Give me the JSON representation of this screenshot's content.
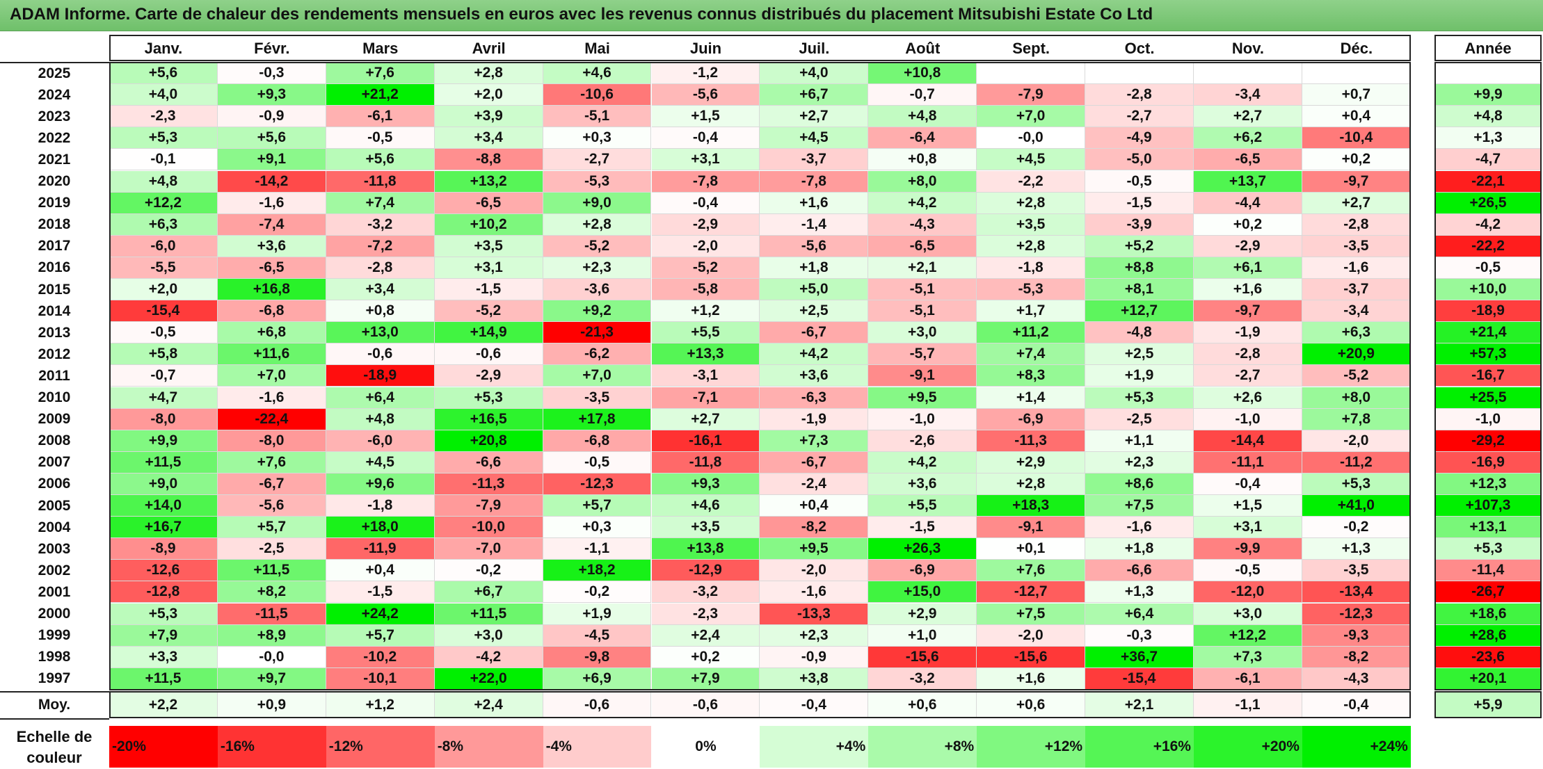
{
  "title": "ADAM Informe. Carte de chaleur des rendements mensuels en euros avec les revenus connus distribués du placement Mitsubishi Estate Co Ltd",
  "chart_data": {
    "type": "heatmap",
    "title": "ADAM Informe. Carte de chaleur des rendements mensuels en euros avec les revenus connus distribués du placement Mitsubishi Estate Co Ltd",
    "columns": [
      "Janv.",
      "Févr.",
      "Mars",
      "Avril",
      "Mai",
      "Juin",
      "Juil.",
      "Août",
      "Sept.",
      "Oct.",
      "Nov.",
      "Déc."
    ],
    "annual_header": "Année",
    "rows": [
      {
        "year": "2025",
        "values": [
          "+5,6",
          "-0,3",
          "+7,6",
          "+2,8",
          "+4,6",
          "-1,2",
          "+4,0",
          "+10,8",
          "",
          "",
          "",
          ""
        ],
        "annual": ""
      },
      {
        "year": "2024",
        "values": [
          "+4,0",
          "+9,3",
          "+21,2",
          "+2,0",
          "-10,6",
          "-5,6",
          "+6,7",
          "-0,7",
          "-7,9",
          "-2,8",
          "-3,4",
          "+0,7"
        ],
        "annual": "+9,9"
      },
      {
        "year": "2023",
        "values": [
          "-2,3",
          "-0,9",
          "-6,1",
          "+3,9",
          "-5,1",
          "+1,5",
          "+2,7",
          "+4,8",
          "+7,0",
          "-2,7",
          "+2,7",
          "+0,4"
        ],
        "annual": "+4,8"
      },
      {
        "year": "2022",
        "values": [
          "+5,3",
          "+5,6",
          "-0,5",
          "+3,4",
          "+0,3",
          "-0,4",
          "+4,5",
          "-6,4",
          "-0,0",
          "-4,9",
          "+6,2",
          "-10,4"
        ],
        "annual": "+1,3"
      },
      {
        "year": "2021",
        "values": [
          "-0,1",
          "+9,1",
          "+5,6",
          "-8,8",
          "-2,7",
          "+3,1",
          "-3,7",
          "+0,8",
          "+4,5",
          "-5,0",
          "-6,5",
          "+0,2"
        ],
        "annual": "-4,7"
      },
      {
        "year": "2020",
        "values": [
          "+4,8",
          "-14,2",
          "-11,8",
          "+13,2",
          "-5,3",
          "-7,8",
          "-7,8",
          "+8,0",
          "-2,2",
          "-0,5",
          "+13,7",
          "-9,7"
        ],
        "annual": "-22,1"
      },
      {
        "year": "2019",
        "values": [
          "+12,2",
          "-1,6",
          "+7,4",
          "-6,5",
          "+9,0",
          "-0,4",
          "+1,6",
          "+4,2",
          "+2,8",
          "-1,5",
          "-4,4",
          "+2,7"
        ],
        "annual": "+26,5"
      },
      {
        "year": "2018",
        "values": [
          "+6,3",
          "-7,4",
          "-3,2",
          "+10,2",
          "+2,8",
          "-2,9",
          "-1,4",
          "-4,3",
          "+3,5",
          "-3,9",
          "+0,2",
          "-2,8"
        ],
        "annual": "-4,2"
      },
      {
        "year": "2017",
        "values": [
          "-6,0",
          "+3,6",
          "-7,2",
          "+3,5",
          "-5,2",
          "-2,0",
          "-5,6",
          "-6,5",
          "+2,8",
          "+5,2",
          "-2,9",
          "-3,5"
        ],
        "annual": "-22,2"
      },
      {
        "year": "2016",
        "values": [
          "-5,5",
          "-6,5",
          "-2,8",
          "+3,1",
          "+2,3",
          "-5,2",
          "+1,8",
          "+2,1",
          "-1,8",
          "+8,8",
          "+6,1",
          "-1,6"
        ],
        "annual": "-0,5"
      },
      {
        "year": "2015",
        "values": [
          "+2,0",
          "+16,8",
          "+3,4",
          "-1,5",
          "-3,6",
          "-5,8",
          "+5,0",
          "-5,1",
          "-5,3",
          "+8,1",
          "+1,6",
          "-3,7"
        ],
        "annual": "+10,0"
      },
      {
        "year": "2014",
        "values": [
          "-15,4",
          "-6,8",
          "+0,8",
          "-5,2",
          "+9,2",
          "+1,2",
          "+2,5",
          "-5,1",
          "+1,7",
          "+12,7",
          "-9,7",
          "-3,4"
        ],
        "annual": "-18,9"
      },
      {
        "year": "2013",
        "values": [
          "-0,5",
          "+6,8",
          "+13,0",
          "+14,9",
          "-21,3",
          "+5,5",
          "-6,7",
          "+3,0",
          "+11,2",
          "-4,8",
          "-1,9",
          "+6,3"
        ],
        "annual": "+21,4"
      },
      {
        "year": "2012",
        "values": [
          "+5,8",
          "+11,6",
          "-0,6",
          "-0,6",
          "-6,2",
          "+13,3",
          "+4,2",
          "-5,7",
          "+7,4",
          "+2,5",
          "-2,8",
          "+20,9"
        ],
        "annual": "+57,3"
      },
      {
        "year": "2011",
        "values": [
          "-0,7",
          "+7,0",
          "-18,9",
          "-2,9",
          "+7,0",
          "-3,1",
          "+3,6",
          "-9,1",
          "+8,3",
          "+1,9",
          "-2,7",
          "-5,2"
        ],
        "annual": "-16,7"
      },
      {
        "year": "2010",
        "values": [
          "+4,7",
          "-1,6",
          "+6,4",
          "+5,3",
          "-3,5",
          "-7,1",
          "-6,3",
          "+9,5",
          "+1,4",
          "+5,3",
          "+2,6",
          "+8,0"
        ],
        "annual": "+25,5"
      },
      {
        "year": "2009",
        "values": [
          "-8,0",
          "-22,4",
          "+4,8",
          "+16,5",
          "+17,8",
          "+2,7",
          "-1,9",
          "-1,0",
          "-6,9",
          "-2,5",
          "-1,0",
          "+7,8"
        ],
        "annual": "-1,0"
      },
      {
        "year": "2008",
        "values": [
          "+9,9",
          "-8,0",
          "-6,0",
          "+20,8",
          "-6,8",
          "-16,1",
          "+7,3",
          "-2,6",
          "-11,3",
          "+1,1",
          "-14,4",
          "-2,0"
        ],
        "annual": "-29,2"
      },
      {
        "year": "2007",
        "values": [
          "+11,5",
          "+7,6",
          "+4,5",
          "-6,6",
          "-0,5",
          "-11,8",
          "-6,7",
          "+4,2",
          "+2,9",
          "+2,3",
          "-11,1",
          "-11,2"
        ],
        "annual": "-16,9"
      },
      {
        "year": "2006",
        "values": [
          "+9,0",
          "-6,7",
          "+9,6",
          "-11,3",
          "-12,3",
          "+9,3",
          "-2,4",
          "+3,6",
          "+2,8",
          "+8,6",
          "-0,4",
          "+5,3"
        ],
        "annual": "+12,3"
      },
      {
        "year": "2005",
        "values": [
          "+14,0",
          "-5,6",
          "-1,8",
          "-7,9",
          "+5,7",
          "+4,6",
          "+0,4",
          "+5,5",
          "+18,3",
          "+7,5",
          "+1,5",
          "+41,0"
        ],
        "annual": "+107,3"
      },
      {
        "year": "2004",
        "values": [
          "+16,7",
          "+5,7",
          "+18,0",
          "-10,0",
          "+0,3",
          "+3,5",
          "-8,2",
          "-1,5",
          "-9,1",
          "-1,6",
          "+3,1",
          "-0,2"
        ],
        "annual": "+13,1"
      },
      {
        "year": "2003",
        "values": [
          "-8,9",
          "-2,5",
          "-11,9",
          "-7,0",
          "-1,1",
          "+13,8",
          "+9,5",
          "+26,3",
          "+0,1",
          "+1,8",
          "-9,9",
          "+1,3"
        ],
        "annual": "+5,3"
      },
      {
        "year": "2002",
        "values": [
          "-12,6",
          "+11,5",
          "+0,4",
          "-0,2",
          "+18,2",
          "-12,9",
          "-2,0",
          "-6,9",
          "+7,6",
          "-6,6",
          "-0,5",
          "-3,5"
        ],
        "annual": "-11,4"
      },
      {
        "year": "2001",
        "values": [
          "-12,8",
          "+8,2",
          "-1,5",
          "+6,7",
          "-0,2",
          "-3,2",
          "-1,6",
          "+15,0",
          "-12,7",
          "+1,3",
          "-12,0",
          "-13,4"
        ],
        "annual": "-26,7"
      },
      {
        "year": "2000",
        "values": [
          "+5,3",
          "-11,5",
          "+24,2",
          "+11,5",
          "+1,9",
          "-2,3",
          "-13,3",
          "+2,9",
          "+7,5",
          "+6,4",
          "+3,0",
          "-12,3"
        ],
        "annual": "+18,6"
      },
      {
        "year": "1999",
        "values": [
          "+7,9",
          "+8,9",
          "+5,7",
          "+3,0",
          "-4,5",
          "+2,4",
          "+2,3",
          "+1,0",
          "-2,0",
          "-0,3",
          "+12,2",
          "-9,3"
        ],
        "annual": "+28,6"
      },
      {
        "year": "1998",
        "values": [
          "+3,3",
          "-0,0",
          "-10,2",
          "-4,2",
          "-9,8",
          "+0,2",
          "-0,9",
          "-15,6",
          "-15,6",
          "+36,7",
          "+7,3",
          "-8,2"
        ],
        "annual": "-23,6"
      },
      {
        "year": "1997",
        "values": [
          "+11,5",
          "+9,7",
          "-10,1",
          "+22,0",
          "+6,9",
          "+7,9",
          "+3,8",
          "-3,2",
          "+1,6",
          "-15,4",
          "-6,1",
          "-4,3"
        ],
        "annual": "+20,1"
      }
    ],
    "average": {
      "label": "Moy.",
      "values": [
        "+2,2",
        "+0,9",
        "+1,2",
        "+2,4",
        "-0,6",
        "-0,6",
        "-0,4",
        "+0,6",
        "+0,6",
        "+2,1",
        "-1,1",
        "-0,4"
      ],
      "annual": "+5,9"
    },
    "color_scale": {
      "label_line1": "Echelle de",
      "label_line2": "couleur",
      "stops": [
        "-20%",
        "-16%",
        "-12%",
        "-8%",
        "-4%",
        "0%",
        "+4%",
        "+8%",
        "+12%",
        "+16%",
        "+20%",
        "+24%"
      ],
      "stop_values": [
        -20,
        -16,
        -12,
        -8,
        -4,
        0,
        4,
        8,
        12,
        16,
        20,
        24
      ],
      "negative_color": "#ff0000",
      "neutral_color": "#ffffff",
      "positive_color": "#00ff00"
    }
  }
}
